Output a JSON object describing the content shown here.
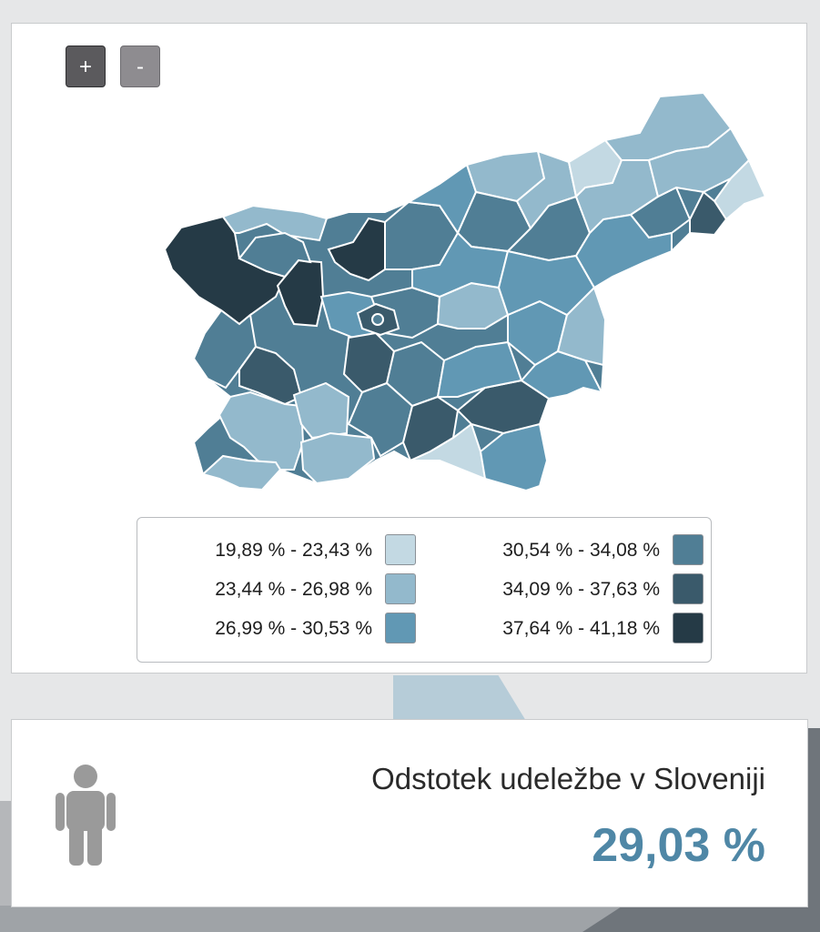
{
  "map": {
    "zoom_in_label": "+",
    "zoom_out_label": "-",
    "colors": {
      "border": "#ffffff",
      "classes": [
        "#c3d9e3",
        "#93b9cc",
        "#6198b4",
        "#507e95",
        "#3a5a6b",
        "#253a46"
      ]
    }
  },
  "legend": {
    "items": [
      {
        "label": "19,89 % - 23,43 %",
        "color": "#c3d9e3"
      },
      {
        "label": "23,44 % - 26,98 %",
        "color": "#93b9cc"
      },
      {
        "label": "26,99 % - 30,53 %",
        "color": "#6198b4"
      },
      {
        "label": "30,54 % - 34,08 %",
        "color": "#507e95"
      },
      {
        "label": "34,09 % - 37,63 %",
        "color": "#3a5a6b"
      },
      {
        "label": "37,64 % - 41,18 %",
        "color": "#253a46"
      }
    ]
  },
  "summary": {
    "icon": "person-icon",
    "title": "Odstotek udeležbe v Sloveniji",
    "value": "29,03 %",
    "value_color": "#4f87a6"
  }
}
